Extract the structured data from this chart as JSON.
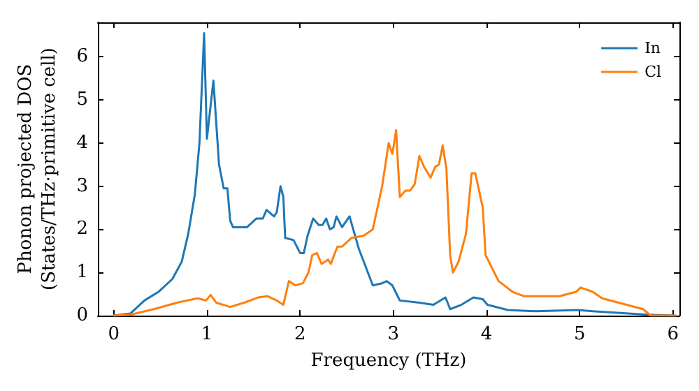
{
  "chart_data": {
    "type": "line",
    "xlabel": "Frequency (THz)",
    "ylabel": "Phonon projected DOS\n(States/THz·primitive cell)",
    "xlim": [
      -0.17,
      6.07
    ],
    "xticks": [
      0,
      1,
      2,
      3,
      4,
      5,
      6
    ],
    "ylim": [
      0,
      6.8
    ],
    "yticks": [
      0,
      1,
      2,
      3,
      4,
      5,
      6
    ],
    "grid": false,
    "legend": "top right",
    "marker": "none",
    "line_style": "solid",
    "series": [
      {
        "name": "In",
        "color": "#1f77b4",
        "x": [
          0,
          0.18,
          0.33,
          0.48,
          0.63,
          0.73,
          0.8,
          0.87,
          0.92,
          0.97,
          1.0,
          1.07,
          1.13,
          1.18,
          1.22,
          1.25,
          1.28,
          1.43,
          1.53,
          1.6,
          1.64,
          1.72,
          1.75,
          1.79,
          1.82,
          1.84,
          1.93,
          2.0,
          2.04,
          2.08,
          2.14,
          2.2,
          2.24,
          2.28,
          2.32,
          2.36,
          2.39,
          2.45,
          2.53,
          2.63,
          2.78,
          2.88,
          2.93,
          2.99,
          3.0,
          3.07,
          3.28,
          3.43,
          3.56,
          3.61,
          3.73,
          3.86,
          3.96,
          4.01,
          4.23,
          4.53,
          4.98,
          5.14,
          5.73,
          6.03
        ],
        "values": [
          0,
          0.05,
          0.35,
          0.55,
          0.85,
          1.25,
          1.9,
          2.8,
          4.0,
          6.55,
          4.1,
          5.45,
          3.5,
          2.95,
          2.95,
          2.2,
          2.05,
          2.05,
          2.25,
          2.25,
          2.45,
          2.3,
          2.4,
          3.0,
          2.75,
          1.8,
          1.75,
          1.45,
          1.45,
          1.85,
          2.25,
          2.1,
          2.1,
          2.25,
          2.0,
          2.05,
          2.3,
          2.05,
          2.3,
          1.55,
          0.7,
          0.75,
          0.8,
          0.7,
          0.7,
          0.35,
          0.3,
          0.25,
          0.42,
          0.15,
          0.25,
          0.42,
          0.38,
          0.25,
          0.13,
          0.1,
          0.13,
          0.1,
          0.02,
          0
        ]
      },
      {
        "name": "Cl",
        "color": "#ff7f0e",
        "x": [
          0,
          0.18,
          0.43,
          0.68,
          0.9,
          0.99,
          1.04,
          1.1,
          1.25,
          1.4,
          1.55,
          1.65,
          1.75,
          1.82,
          1.88,
          1.95,
          2.03,
          2.09,
          2.13,
          2.18,
          2.23,
          2.27,
          2.3,
          2.33,
          2.4,
          2.45,
          2.55,
          2.68,
          2.78,
          2.88,
          2.95,
          2.99,
          3.03,
          3.07,
          3.13,
          3.18,
          3.23,
          3.28,
          3.33,
          3.4,
          3.45,
          3.49,
          3.53,
          3.57,
          3.61,
          3.64,
          3.7,
          3.78,
          3.84,
          3.88,
          3.96,
          3.99,
          4.13,
          4.28,
          4.4,
          4.53,
          4.78,
          4.96,
          5.01,
          5.14,
          5.24,
          5.68,
          5.76,
          6.03
        ],
        "values": [
          0,
          0.02,
          0.15,
          0.3,
          0.4,
          0.35,
          0.48,
          0.3,
          0.2,
          0.3,
          0.42,
          0.45,
          0.35,
          0.25,
          0.8,
          0.7,
          0.75,
          1.0,
          1.4,
          1.45,
          1.2,
          1.25,
          1.3,
          1.2,
          1.6,
          1.6,
          1.8,
          1.85,
          2.0,
          3.0,
          4.0,
          3.75,
          4.3,
          2.75,
          2.9,
          2.9,
          3.05,
          3.7,
          3.45,
          3.2,
          3.45,
          3.5,
          3.95,
          3.4,
          1.4,
          1.0,
          1.25,
          1.9,
          3.3,
          3.3,
          2.5,
          1.4,
          0.8,
          0.55,
          0.45,
          0.45,
          0.45,
          0.55,
          0.65,
          0.55,
          0.4,
          0.15,
          0,
          0
        ]
      }
    ]
  }
}
